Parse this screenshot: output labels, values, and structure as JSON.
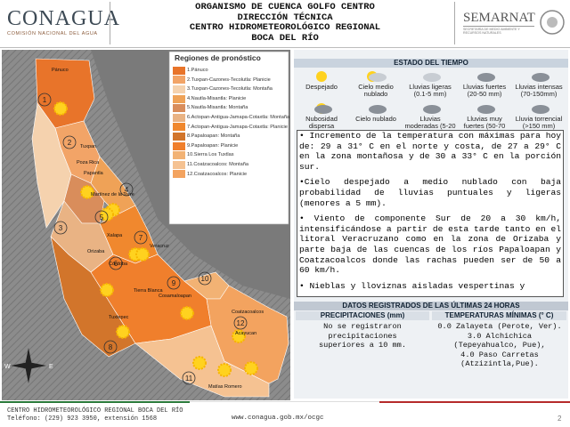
{
  "header": {
    "logo_left": "CONAGUA",
    "logo_left_sub": "COMISIÓN NACIONAL DEL AGUA",
    "title_lines": [
      "ORGANISMO DE CUENCA GOLFO CENTRO",
      "DIRECCIÓN TÉCNICA",
      "CENTRO HIDROMETEOROLÓGICO REGIONAL",
      "BOCA DEL RÍO"
    ],
    "logo_right": "SEMARNAT",
    "logo_right_sub": "SECRETARÍA DE MEDIO AMBIENTE Y RECURSOS NATURALES"
  },
  "map": {
    "legend_title": "Regiones de pronóstico",
    "legend": [
      {
        "label": "1.Pánuco",
        "color": "#e8742a"
      },
      {
        "label": "2.Tuxpan-Cazones-Tecolutla: Planicie",
        "color": "#f2a467"
      },
      {
        "label": "3.Tuxpan-Cazones-Tecolutla: Montaña",
        "color": "#f5d2ae"
      },
      {
        "label": "4.Nautla-Misantla: Planicie",
        "color": "#efa257"
      },
      {
        "label": "5.Nautla-Misantla: Montaña",
        "color": "#d98d5b"
      },
      {
        "label": "6.Actopan-Antigua-Jamapa-Cotaxtla: Montaña",
        "color": "#e9b384"
      },
      {
        "label": "7.Actopan-Antigua-Jamapa-Cotaxtla: Planicie",
        "color": "#f0882e"
      },
      {
        "label": "8.Papaloapan: Montaña",
        "color": "#d2752b"
      },
      {
        "label": "9.Papaloapan: Planicie",
        "color": "#f07f2c"
      },
      {
        "label": "10.Sierra Los Tuxtlas",
        "color": "#f2b274"
      },
      {
        "label": "11.Coatzacoalcos: Montaña",
        "color": "#f5c292"
      },
      {
        "label": "12.Coatzacoalcos: Planicie",
        "color": "#f3a35f"
      }
    ],
    "region_numbers": [
      "1",
      "2",
      "3",
      "4",
      "5",
      "6",
      "7",
      "8",
      "9",
      "10",
      "11",
      "12"
    ],
    "cities": [
      "Pánuco",
      "Tuxpan",
      "Poza Rica",
      "Papantla",
      "Martínez de la Torre",
      "Xalapa",
      "Veracruz",
      "Orizaba",
      "Córdoba",
      "Tierra Blanca",
      "Cosamaloapan",
      "Tuxtepec",
      "Acayucan",
      "Coatzacoalcos",
      "Matías Romero"
    ]
  },
  "weather": {
    "title": "ESTADO DEL TIEMPO",
    "icons": [
      "Despejado",
      "Cielo medio nublado",
      "Lluvias ligeras (0.1-5 mm)",
      "Lluvias fuertes (20-50 mm)",
      "Lluvias intensas (70-150mm)",
      "Nubosidad dispersa",
      "Cielo nublado",
      "Lluvias moderadas (5-20 mm)",
      "Lluvias muy fuertes (50-70 mm)",
      "Lluvia torrencial (>150 mm)"
    ]
  },
  "forecast": [
    "• Incremento de la temperatura con máximas para hoy de: 29 a 31° C en el norte y costa, de 27 a 29° C en la zona montañosa y de 30 a 33° C en la porción sur.",
    "•Cielo despejado a medio nublado con baja probabilidad de lluvias puntuales y ligeras (menores a 5 mm).",
    "• Viento de componente Sur de 20 a 30 km/h, intensificándose a partir de esta tarde tanto en el litoral Veracruzano como en la zona de Orizaba y parte baja de las cuencas de los ríos Papaloapan y Coatzacoalcos donde las rachas pueden ser de 50 a 60 km/h.",
    "• Nieblas y lloviznas aisladas vespertinas y"
  ],
  "records": {
    "title": "DATOS REGISTRADOS DE LAS ÚLTIMAS 24 HORAS",
    "columns": [
      "PRECIPITACIONES (mm)",
      "TEMPERATURAS MÍNIMAS (° C)"
    ],
    "precipitation": "No se registraron precipitaciones superiores a 10 mm.",
    "temperatures": [
      "0.0 Zalayeta (Perote, Ver).",
      "3.0 Alchichica (Tepeyahualco, Pue),",
      "4.0 Paso Carretas (Atzizintla,Pue)."
    ]
  },
  "footer": {
    "org": "CENTRO HIDROMETEOROLÓGICO REGIONAL BOCA DEL RÍO",
    "phone": "Teléfono: (229) 923 3950, extensión 1568",
    "url": "www.conagua.gob.mx/ocgc",
    "page": "2"
  }
}
